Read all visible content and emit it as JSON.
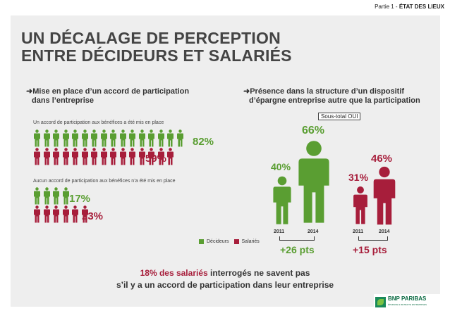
{
  "header": {
    "part": "Partie 1 -",
    "section": "ÉTAT DES LIEUX"
  },
  "title": {
    "line1": "UN DÉCALAGE DE PERCEPTION",
    "line2": "ENTRE DÉCIDEURS ET SALARIÉS"
  },
  "left": {
    "question_line1": "Mise en place d’un accord de participation",
    "question_line2": "dans l’entreprise",
    "group1": {
      "label": "Un accord de participation aux bénéfices a été mis en place",
      "decideurs_pct": "82%",
      "salaries_pct": "59%",
      "decideurs_count": 16,
      "salaries_count": 15
    },
    "group2": {
      "label": "Aucun accord de participation aux bénéfices n’a été mis en place",
      "decideurs_pct": "17%",
      "salaries_pct": "23%",
      "decideurs_count": 4,
      "salaries_count": 6
    }
  },
  "right": {
    "question_line1": "Présence dans la structure d’un dispositif",
    "question_line2": "d’épargne entreprise autre que la participation",
    "subtotal": "Sous-total OUI",
    "decideurs": {
      "y2011": "40%",
      "y2014": "66%",
      "year_a": "2011",
      "year_b": "2014",
      "delta": "+26 pts"
    },
    "salaries": {
      "y2011": "31%",
      "y2014": "46%",
      "year_a": "2011",
      "year_b": "2014",
      "delta": "+15 pts"
    }
  },
  "legend": {
    "decideurs": "Décideurs",
    "salaries": "Salariés"
  },
  "colors": {
    "green": "#5a9e32",
    "red": "#a71e3b"
  },
  "footer": {
    "highlight": "18% des salariés",
    "line1_rest": " interrogés ne savent pas",
    "line2": "s’il y a un accord de participation dans leur entreprise"
  },
  "logo": {
    "name": "BNP PARIBAS",
    "tagline": "ÉPARGNE & RETRAITE ENTREPRISES"
  }
}
